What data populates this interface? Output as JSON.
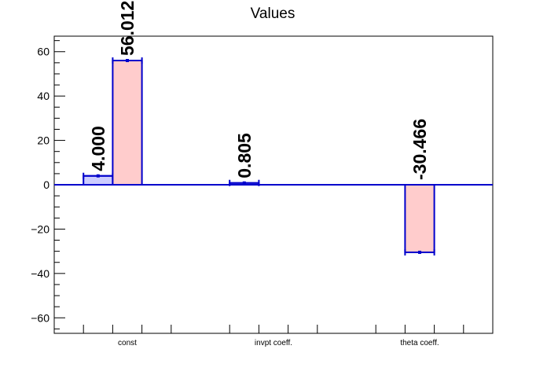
{
  "chart_data": {
    "type": "bar",
    "title": "Values",
    "xlabel": "",
    "ylabel": "",
    "ylim": [
      -67,
      67
    ],
    "yticks": [
      -60,
      -40,
      -20,
      0,
      20,
      40,
      60
    ],
    "ytick_labels": [
      "−60",
      "−40",
      "−20",
      "0",
      "20",
      "40",
      "60"
    ],
    "categories": [
      "const",
      "invpt coeff.",
      "theta coeff."
    ],
    "series": [
      {
        "values": [
          4.0,
          0.805,
          0
        ],
        "labels": [
          "4.000",
          "0.805",
          ""
        ],
        "fill": "#ccccff",
        "stroke": "#0000cc"
      },
      {
        "values": [
          56.012,
          0,
          -30.466
        ],
        "labels": [
          "56.012",
          "",
          "-30.466"
        ],
        "fill": "#ffcccc",
        "stroke": "#0000cc"
      }
    ],
    "grid": false,
    "legend": "none"
  },
  "colors": {
    "axis": "#000000",
    "zero_line": "#0000cc",
    "error_bar": "#0000cc"
  }
}
